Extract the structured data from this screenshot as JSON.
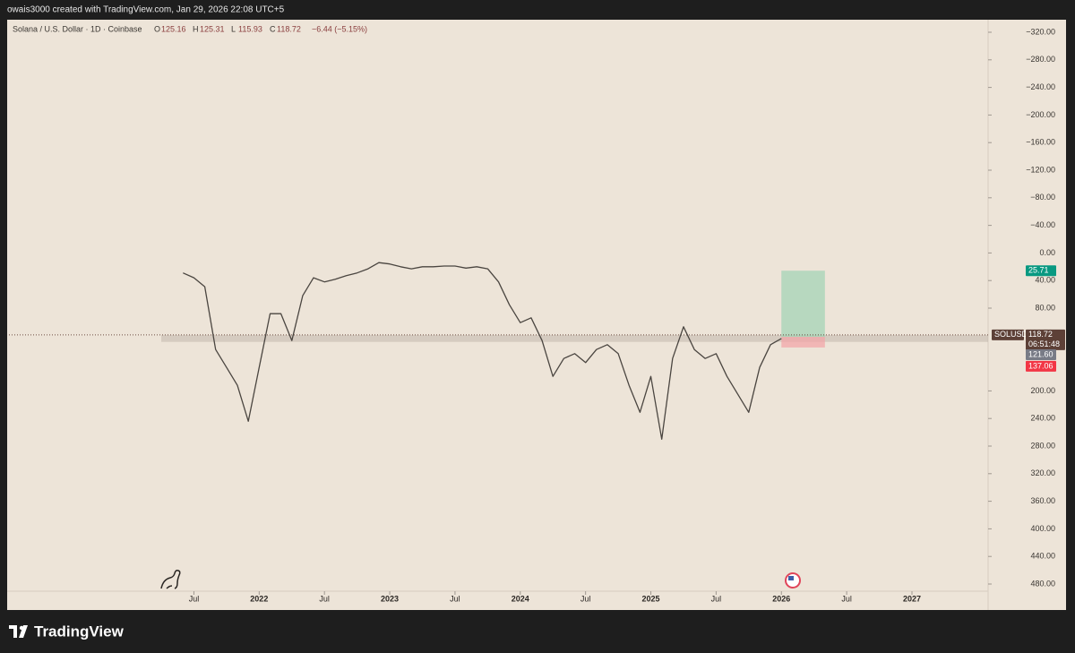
{
  "chart_data": {
    "type": "line",
    "attribution": "owais3000 created with TradingView.com, Jan 29, 2026 22:08 UTC+5",
    "title": "Solana / U.S. Dollar · 1D · Coinbase",
    "ohlc": [
      {
        "label": "O",
        "value": 125.16
      },
      {
        "label": "H",
        "value": 125.31
      },
      {
        "label": "L",
        "value": 115.93
      },
      {
        "label": "C",
        "value": 118.72
      }
    ],
    "change": "−6.44 (−5.15%)",
    "brand": "TradingView",
    "inverted": true,
    "xlim": [
      "2020-02",
      "2027-08"
    ],
    "ylim": [
      -320,
      480
    ],
    "yticks": [
      {
        "value": -320,
        "label": "−320.00"
      },
      {
        "value": -280,
        "label": "−280.00"
      },
      {
        "value": -240,
        "label": "−240.00"
      },
      {
        "value": -200,
        "label": "−200.00"
      },
      {
        "value": -160,
        "label": "−160.00"
      },
      {
        "value": -120,
        "label": "−120.00"
      },
      {
        "value": -80,
        "label": "−80.00"
      },
      {
        "value": -40,
        "label": "−40.00"
      },
      {
        "value": 0,
        "label": "0.00"
      },
      {
        "value": 40,
        "label": "40.00"
      },
      {
        "value": 80,
        "label": "80.00"
      },
      {
        "value": 200,
        "label": "200.00"
      },
      {
        "value": 240,
        "label": "240.00"
      },
      {
        "value": 280,
        "label": "280.00"
      },
      {
        "value": 320,
        "label": "320.00"
      },
      {
        "value": 360,
        "label": "360.00"
      },
      {
        "value": 400,
        "label": "400.00"
      },
      {
        "value": 440,
        "label": "440.00"
      },
      {
        "value": 480,
        "label": "480.00"
      }
    ],
    "xticks": [
      {
        "value": "2021-07",
        "label": "Jul"
      },
      {
        "value": "2022-01",
        "label": "2022"
      },
      {
        "value": "2022-07",
        "label": "Jul"
      },
      {
        "value": "2023-01",
        "label": "2023"
      },
      {
        "value": "2023-07",
        "label": "Jul"
      },
      {
        "value": "2024-01",
        "label": "2024"
      },
      {
        "value": "2024-07",
        "label": "Jul"
      },
      {
        "value": "2025-01",
        "label": "2025"
      },
      {
        "value": "2025-07",
        "label": "Jul"
      },
      {
        "value": "2026-01",
        "label": "2026"
      },
      {
        "value": "2026-07",
        "label": "Jul"
      },
      {
        "value": "2027-01",
        "label": "2027"
      }
    ],
    "x": [
      "2021-06",
      "2021-07",
      "2021-08",
      "2021-09",
      "2021-10",
      "2021-11",
      "2021-12",
      "2022-01",
      "2022-02",
      "2022-03",
      "2022-04",
      "2022-05",
      "2022-06",
      "2022-07",
      "2022-08",
      "2022-09",
      "2022-10",
      "2022-11",
      "2022-12",
      "2023-01",
      "2023-02",
      "2023-03",
      "2023-04",
      "2023-05",
      "2023-06",
      "2023-07",
      "2023-08",
      "2023-09",
      "2023-10",
      "2023-11",
      "2023-12",
      "2024-01",
      "2024-02",
      "2024-03",
      "2024-04",
      "2024-05",
      "2024-06",
      "2024-07",
      "2024-08",
      "2024-09",
      "2024-10",
      "2024-11",
      "2024-12",
      "2025-01",
      "2025-02",
      "2025-03",
      "2025-04",
      "2025-05",
      "2025-06",
      "2025-07",
      "2025-08",
      "2025-09",
      "2025-10",
      "2025-11",
      "2025-12",
      "2026-01"
    ],
    "series": [
      {
        "name": "SOLUSD",
        "color": "#4a4540",
        "values": [
          29,
          36,
          49,
          140,
          166,
          192,
          244,
          166,
          88,
          88,
          127,
          62,
          36,
          42,
          38,
          33,
          29,
          23,
          14,
          16,
          20,
          23,
          20,
          20,
          19,
          19,
          22,
          20,
          23,
          42,
          75,
          101,
          94,
          127,
          179,
          153,
          146,
          159,
          140,
          133,
          146,
          192,
          231,
          179,
          270,
          153,
          107,
          140,
          153,
          146,
          179,
          205,
          231,
          166,
          133,
          124
        ]
      }
    ],
    "last_price": {
      "symbol": "SOLUSD",
      "value": 118.72,
      "countdown": "06:51:48"
    },
    "zone": {
      "start": "2021-04",
      "from": 119,
      "to": 129
    },
    "position": {
      "start": "2026-01",
      "end": "2026-05",
      "target": 25.71,
      "entry": 121.6,
      "stop": 137.06,
      "target_label": "25.71",
      "entry_label": "121.60",
      "stop_label": "137.06"
    }
  }
}
